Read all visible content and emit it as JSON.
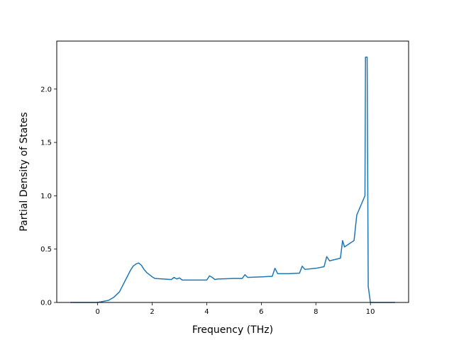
{
  "chart_data": {
    "type": "line",
    "title": "",
    "xlabel": "Frequency (THz)",
    "ylabel": "Partial Density of States",
    "xlim": [
      -1.5,
      11.4
    ],
    "ylim": [
      0.0,
      2.45
    ],
    "xticks": [
      0,
      2,
      4,
      6,
      8,
      10
    ],
    "yticks": [
      0.0,
      0.5,
      1.0,
      1.5,
      2.0
    ],
    "xtick_labels": [
      "0",
      "2",
      "4",
      "6",
      "8",
      "10"
    ],
    "ytick_labels": [
      "0.0",
      "0.5",
      "1.0",
      "1.5",
      "2.0"
    ],
    "grid": false,
    "legend": "none",
    "colors": {
      "line": "#1f77b4"
    },
    "series": [
      {
        "x": [
          -1.0,
          -0.5,
          0.0,
          0.2,
          0.4,
          0.6,
          0.8,
          0.9,
          1.0,
          1.1,
          1.2,
          1.3,
          1.4,
          1.5,
          1.6,
          1.7,
          1.8,
          1.9,
          2.0,
          2.1,
          2.4,
          2.7,
          2.8,
          2.9,
          3.0,
          3.1,
          3.3,
          3.6,
          4.0,
          4.1,
          4.2,
          4.3,
          4.4,
          5.0,
          5.3,
          5.4,
          5.5,
          6.0,
          6.4,
          6.5,
          6.6,
          7.0,
          7.4,
          7.5,
          7.6,
          8.0,
          8.3,
          8.4,
          8.5,
          8.9,
          8.98,
          9.05,
          9.4,
          9.5,
          9.8,
          9.82,
          9.88,
          9.92,
          10.0,
          10.5,
          10.9
        ],
        "y": [
          0.0,
          0.0,
          0.0,
          0.01,
          0.02,
          0.05,
          0.1,
          0.15,
          0.2,
          0.25,
          0.3,
          0.34,
          0.36,
          0.37,
          0.35,
          0.31,
          0.28,
          0.26,
          0.24,
          0.225,
          0.22,
          0.215,
          0.235,
          0.22,
          0.23,
          0.21,
          0.21,
          0.21,
          0.21,
          0.25,
          0.235,
          0.215,
          0.22,
          0.225,
          0.225,
          0.26,
          0.235,
          0.24,
          0.245,
          0.32,
          0.27,
          0.27,
          0.275,
          0.34,
          0.31,
          0.32,
          0.335,
          0.43,
          0.39,
          0.415,
          0.58,
          0.52,
          0.58,
          0.82,
          1.0,
          2.3,
          2.3,
          0.15,
          0.0,
          0.0,
          0.0
        ]
      }
    ]
  }
}
